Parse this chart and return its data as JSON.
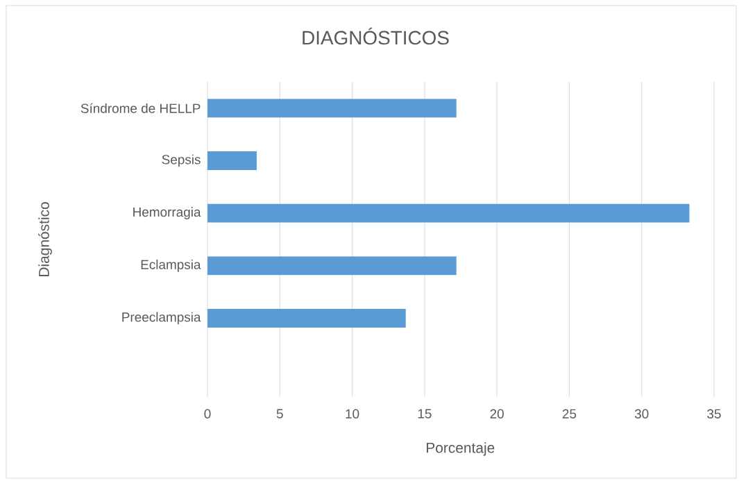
{
  "chart_data": {
    "type": "bar",
    "orientation": "horizontal",
    "title": "DIAGNÓSTICOS",
    "xlabel": "Porcentaje",
    "ylabel": "Diagnóstico",
    "categories": [
      "Síndrome de HELLP",
      "Sepsis",
      "Hemorragia",
      "Eclampsia",
      "Preeclampsia",
      null
    ],
    "values": [
      17.2,
      3.4,
      33.3,
      17.2,
      13.7,
      null
    ],
    "color": "#5b9bd5",
    "xlim": [
      0,
      35
    ],
    "xticks": [
      0,
      5,
      10,
      15,
      20,
      25,
      30,
      35
    ],
    "grid": "x"
  }
}
